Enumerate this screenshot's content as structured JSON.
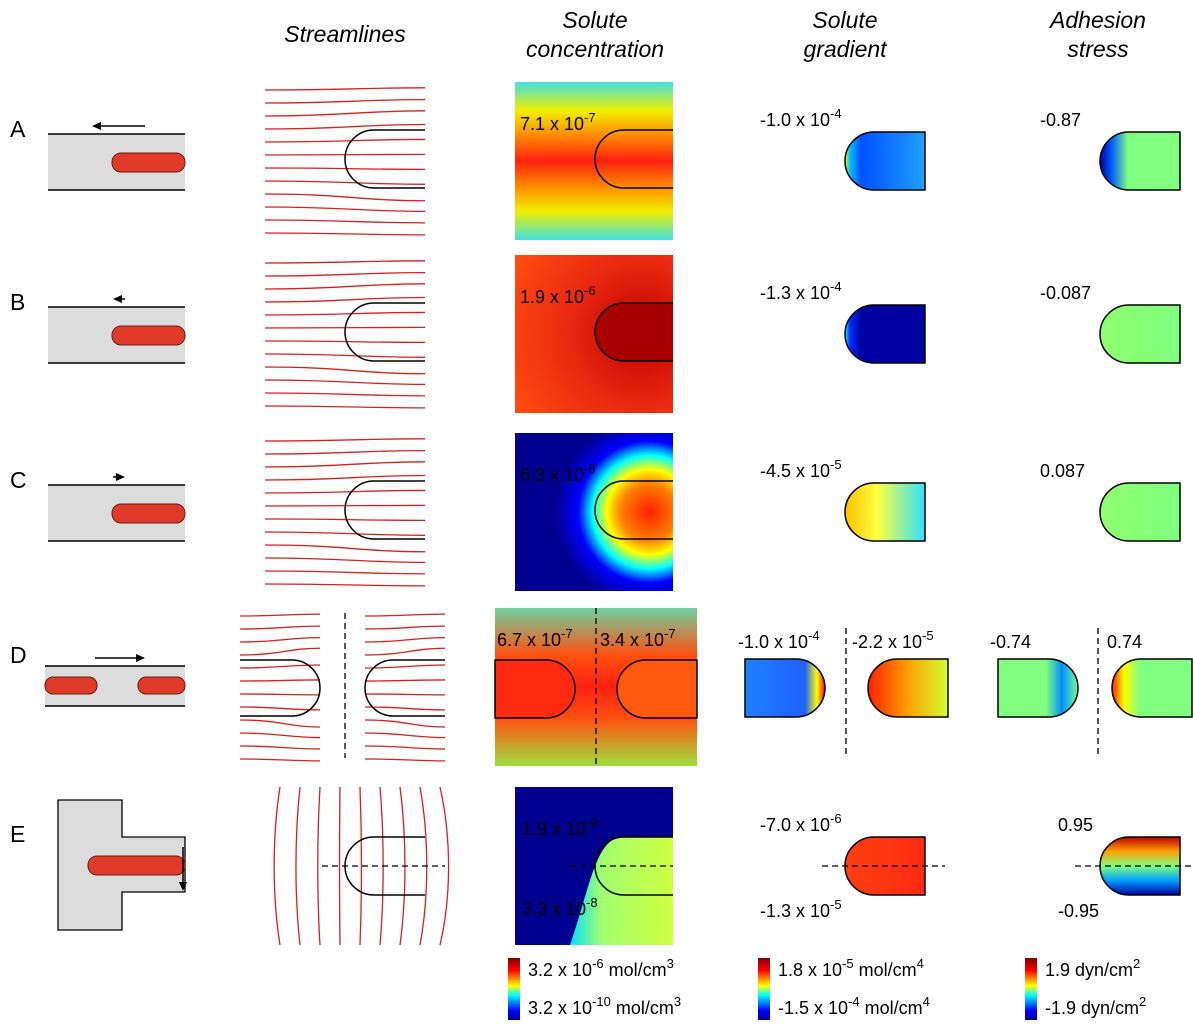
{
  "headers": {
    "streamlines": "Streamlines",
    "concentration": "Solute concentration",
    "gradient": "Solute gradient",
    "stress": "Adhesion stress"
  },
  "rows": [
    {
      "label": "A",
      "concentration": [
        [
          "7.1 x 10",
          "-7"
        ]
      ],
      "gradient": [
        [
          "-1.0 x 10",
          "-4"
        ]
      ],
      "stress": [
        [
          "-0.87"
        ]
      ]
    },
    {
      "label": "B",
      "concentration": [
        [
          "1.9 x 10",
          "-6"
        ]
      ],
      "gradient": [
        [
          "-1.3 x 10",
          "-4"
        ]
      ],
      "stress": [
        [
          "-0.087"
        ]
      ]
    },
    {
      "label": "C",
      "concentration": [
        [
          "6.3 x 10",
          "-8"
        ]
      ],
      "gradient": [
        [
          "-4.5 x 10",
          "-5"
        ]
      ],
      "stress": [
        [
          "0.087"
        ]
      ]
    },
    {
      "label": "D",
      "concentration": [
        [
          "6.7 x 10",
          "-7"
        ],
        [
          "3.4 x 10",
          "-7"
        ]
      ],
      "gradient": [
        [
          "-1.0 x 10",
          "-4"
        ],
        [
          "-2.2 x 10",
          "-5"
        ]
      ],
      "stress": [
        [
          "-0.74"
        ],
        [
          "0.74"
        ]
      ]
    },
    {
      "label": "E",
      "concentration": [
        [
          "1.9 x 10",
          "-9"
        ],
        [
          "3.3 x 10",
          "-8"
        ]
      ],
      "gradient": [
        [
          "-7.0 x 10",
          "-6"
        ],
        [
          "-1.3 x 10",
          "-5"
        ]
      ],
      "stress": [
        [
          "0.95"
        ],
        [
          "-0.95"
        ]
      ]
    }
  ],
  "legends": [
    {
      "max": [
        "3.2 x 10",
        "-6",
        "mol/cm",
        "3"
      ],
      "min": [
        "3.2 x 10",
        "-10",
        "mol/cm",
        "3"
      ]
    },
    {
      "max": [
        "1.8 x 10",
        "-5",
        "mol/cm",
        "4"
      ],
      "min": [
        "-1.5 x 10",
        "-4",
        "mol/cm",
        "4"
      ]
    },
    {
      "max": [
        "1.9 dyn/cm",
        "2"
      ],
      "min": [
        "-1.9 dyn/cm",
        "2"
      ]
    }
  ]
}
